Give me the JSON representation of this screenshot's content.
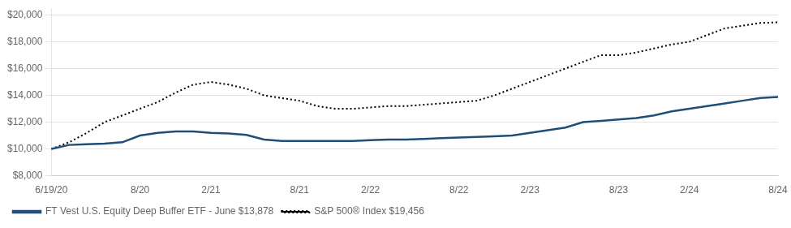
{
  "chart_data": {
    "type": "line",
    "categories": [
      "6/19/20",
      null,
      null,
      null,
      null,
      "8/20",
      null,
      null,
      null,
      "2/21",
      null,
      null,
      null,
      null,
      "8/21",
      null,
      null,
      null,
      "2/22",
      null,
      null,
      null,
      null,
      "8/22",
      null,
      null,
      null,
      "2/23",
      null,
      null,
      null,
      null,
      "8/23",
      null,
      null,
      null,
      "2/24",
      null,
      null,
      null,
      null,
      "8/24"
    ],
    "series": [
      {
        "name": "FT Vest U.S. Equity Deep Buffer ETF - June $13,878",
        "color": "#1f4e79",
        "line_style": "solid",
        "values": [
          10000,
          10300,
          10350,
          10400,
          10500,
          11000,
          11200,
          11300,
          11300,
          11200,
          11150,
          11050,
          10700,
          10600,
          10600,
          10600,
          10600,
          10600,
          10650,
          10700,
          10700,
          10750,
          10800,
          10850,
          10900,
          10950,
          11000,
          11200,
          11400,
          11600,
          12000,
          12100,
          12200,
          12300,
          12500,
          12800,
          13000,
          13200,
          13400,
          13600,
          13800,
          13878
        ]
      },
      {
        "name": "S&P 500® Index $19,456",
        "color": "#000000",
        "line_style": "dotted",
        "values": [
          10000,
          10500,
          11200,
          12000,
          12500,
          13000,
          13500,
          14200,
          14800,
          15000,
          14800,
          14500,
          14000,
          13800,
          13600,
          13200,
          13000,
          13000,
          13100,
          13200,
          13200,
          13300,
          13400,
          13500,
          13600,
          14000,
          14500,
          15000,
          15500,
          16000,
          16500,
          17000,
          17000,
          17200,
          17500,
          17800,
          18000,
          18500,
          19000,
          19200,
          19400,
          19456
        ]
      }
    ],
    "ylim": [
      8000,
      20500
    ],
    "yticks": [
      {
        "value": 8000,
        "label": "$8,000"
      },
      {
        "value": 10000,
        "label": "$10,000"
      },
      {
        "value": 12000,
        "label": "$12,000"
      },
      {
        "value": 14000,
        "label": "$14,000"
      },
      {
        "value": 16000,
        "label": "$16,000"
      },
      {
        "value": 18000,
        "label": "$18,000"
      },
      {
        "value": 20000,
        "label": "$20,000"
      }
    ],
    "grid": "y",
    "legend": "bottom"
  }
}
